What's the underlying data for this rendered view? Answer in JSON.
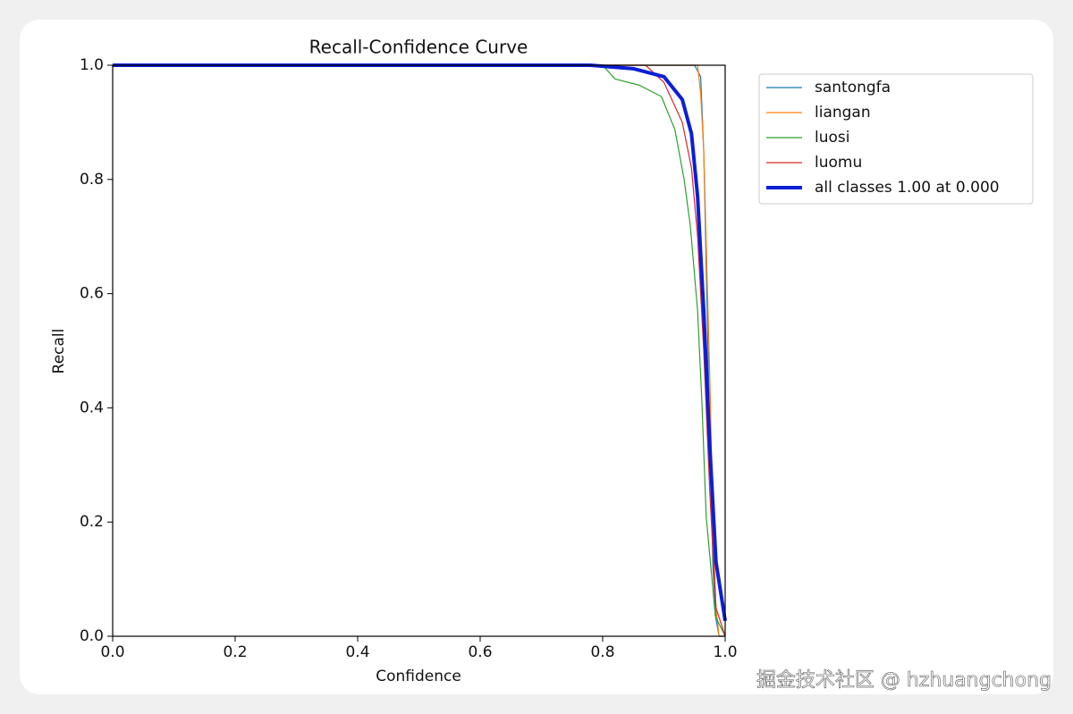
{
  "chart_data": {
    "type": "line",
    "title": "Recall-Confidence Curve",
    "x_label": "Confidence",
    "y_label": "Recall",
    "xlim": [
      0,
      1
    ],
    "ylim": [
      0,
      1
    ],
    "xticks": [
      {
        "value": 0,
        "label": "0.0"
      },
      0.2,
      0.4,
      0.6,
      0.8,
      {
        "value": 1,
        "label": "1.0"
      }
    ],
    "yticks": [
      {
        "value": 0,
        "label": "0.0"
      },
      0.2,
      0.4,
      0.6,
      0.8,
      {
        "value": 1,
        "label": "1.0"
      }
    ],
    "legend": "outside-right",
    "series": [
      {
        "name": "santongfa",
        "color": "#1f77b4",
        "width": 1.2,
        "x": [
          0,
          0.95,
          0.96,
          0.965,
          0.97,
          0.975,
          0.98,
          0.985,
          0.99,
          1.0
        ],
        "values": [
          1,
          1,
          0.98,
          0.85,
          0.6,
          0.35,
          0.12,
          0.03,
          0,
          0
        ]
      },
      {
        "name": "liangan",
        "color": "#ff7f0e",
        "width": 1.2,
        "x": [
          0,
          0.955,
          0.96,
          0.965,
          0.97,
          0.975,
          0.98,
          0.985,
          0.99,
          1.0
        ],
        "values": [
          1,
          1,
          0.95,
          0.85,
          0.65,
          0.45,
          0.2,
          0.05,
          0,
          0
        ]
      },
      {
        "name": "luosi",
        "color": "#2ca02c",
        "width": 1.2,
        "x": [
          0,
          0.8,
          0.82,
          0.86,
          0.896,
          0.918,
          0.933,
          0.943,
          0.955,
          0.962,
          0.969,
          0.984,
          1.0
        ],
        "values": [
          1,
          1,
          0.976,
          0.965,
          0.945,
          0.887,
          0.8,
          0.72,
          0.57,
          0.41,
          0.21,
          0.035,
          0
        ]
      },
      {
        "name": "luomu",
        "color": "#d62728",
        "width": 1.2,
        "x": [
          0,
          0.87,
          0.9,
          0.93,
          0.945,
          0.955,
          0.965,
          0.975,
          0.985,
          1.0
        ],
        "values": [
          1,
          1,
          0.97,
          0.9,
          0.82,
          0.7,
          0.5,
          0.25,
          0.05,
          0
        ]
      },
      {
        "name": "all classes 1.00 at 0.000",
        "color": "#0b1fd6",
        "width": 4,
        "x": [
          0,
          0.78,
          0.85,
          0.9,
          0.93,
          0.945,
          0.955,
          0.965,
          0.975,
          0.985,
          1.0
        ],
        "values": [
          1,
          1,
          0.994,
          0.98,
          0.94,
          0.88,
          0.77,
          0.57,
          0.33,
          0.13,
          0.027
        ]
      }
    ]
  },
  "watermark": "掘金技术社区 @ hzhuangchong"
}
